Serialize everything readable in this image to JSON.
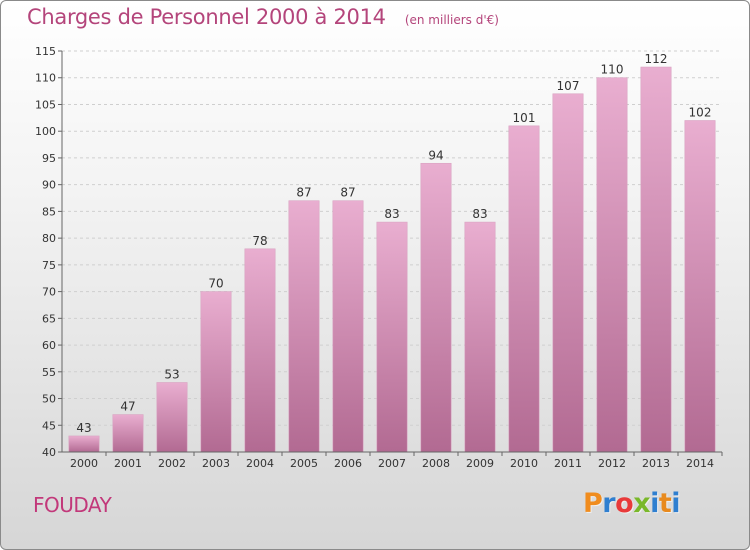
{
  "header": {
    "title": "Charges de Personnel 2000 à 2014",
    "subtitle": "(en milliers d'€)"
  },
  "footer": {
    "place": "FOUDAY"
  },
  "logo": {
    "text": "Proxiti",
    "colors": [
      "#f08c1e",
      "#2f7fd0",
      "#e83a3a",
      "#7ab82a",
      "#2f7fd0",
      "#e88a1e",
      "#2f7fd0"
    ]
  },
  "colors": {
    "title": "#b4457b",
    "bar_top": "#e9aed0",
    "bar_bottom": "#b26a92",
    "grid": "#cfcfcf"
  },
  "chart_data": {
    "type": "bar",
    "title": "Charges de Personnel 2000 à 2014",
    "subtitle": "(en milliers d'€)",
    "categories": [
      "2000",
      "2001",
      "2002",
      "2003",
      "2004",
      "2005",
      "2006",
      "2007",
      "2008",
      "2009",
      "2010",
      "2011",
      "2012",
      "2013",
      "2014"
    ],
    "values": [
      43,
      47,
      53,
      70,
      78,
      87,
      87,
      83,
      94,
      83,
      101,
      107,
      110,
      112,
      102
    ],
    "xlabel": "",
    "ylabel": "",
    "ylim": [
      40,
      115
    ],
    "yticks": [
      40,
      45,
      50,
      55,
      60,
      65,
      70,
      75,
      80,
      85,
      90,
      95,
      100,
      105,
      110,
      115
    ],
    "grid": true,
    "data_labels": true
  }
}
